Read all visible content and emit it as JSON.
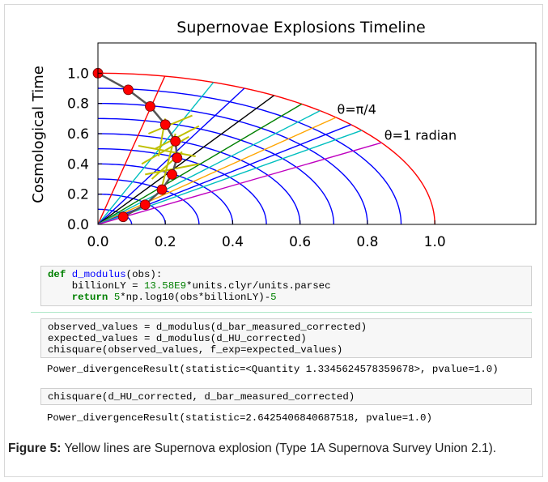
{
  "chart_data": {
    "type": "geometry",
    "title": "Supernovae Explosions Timeline",
    "y_label": "Cosmological Time",
    "xlim": [
      0,
      1.3
    ],
    "ylim": [
      0,
      1.2
    ],
    "xticks": [
      {
        "value": 0,
        "label": "0.0"
      },
      0.2,
      0.4,
      0.6,
      0.8,
      {
        "value": 1,
        "label": "1.0"
      }
    ],
    "yticks": [
      {
        "value": 0,
        "label": "0.0"
      },
      0.2,
      0.4,
      0.6,
      0.8,
      {
        "value": 1,
        "label": "1.0"
      }
    ],
    "arcs": {
      "radii": [
        0.1,
        0.2,
        0.3,
        0.4,
        0.5,
        0.6,
        0.7,
        0.8,
        0.9,
        1
      ],
      "colors": [
        "#0000ff",
        "#0000ff",
        "#0000ff",
        "#0000ff",
        "#0000ff",
        "#0000ff",
        "#0000ff",
        "#0000ff",
        "#0000ff",
        "#ff0000"
      ]
    },
    "radial_lines": {
      "angles": [
        0.2,
        0.35,
        0.45,
        0.55,
        0.65,
        0.72,
        0.785,
        0.85,
        0.9,
        1
      ],
      "colors": [
        "#ff0000",
        "#00bfbf",
        "#0000ff",
        "#000000",
        "#008000",
        "#00bfbf",
        "#ffa500",
        "#0000ff",
        "#00bfbf",
        "#bf00bf"
      ]
    },
    "segments": {
      "color": "#bfbf00",
      "values": [
        [
          0.15,
          0.6,
          0.28,
          0.72
        ],
        [
          0.17,
          0.5,
          0.3,
          0.65
        ],
        [
          0.13,
          0.4,
          0.27,
          0.58
        ],
        [
          0.16,
          0.3,
          0.25,
          0.48
        ],
        [
          0.18,
          0.45,
          0.2,
          0.7
        ],
        [
          0.12,
          0.52,
          0.29,
          0.45
        ],
        [
          0.14,
          0.33,
          0.3,
          0.4
        ],
        [
          0.19,
          0.25,
          0.23,
          0.6
        ]
      ]
    },
    "curve": {
      "color": "#555555",
      "x": [
        0,
        0.09,
        0.155,
        0.2,
        0.23,
        0.235,
        0.22,
        0.19,
        0.14,
        0.075
      ],
      "y": [
        1.0,
        0.89,
        0.78,
        0.66,
        0.55,
        0.44,
        0.33,
        0.23,
        0.13,
        0.05
      ]
    },
    "points": {
      "color": "#ff0000",
      "x": [
        0,
        0.09,
        0.155,
        0.2,
        0.23,
        0.235,
        0.22,
        0.19,
        0.14,
        0.075
      ],
      "y": [
        1.0,
        0.89,
        0.78,
        0.66,
        0.55,
        0.44,
        0.33,
        0.23,
        0.13,
        0.05
      ]
    },
    "annotations": [
      {
        "text": "θ=π/4",
        "x": 0.71,
        "y": 0.73
      },
      {
        "text": "θ=1 radian",
        "x": 0.85,
        "y": 0.56
      }
    ]
  },
  "cells": [
    {
      "lines": [
        "def d_modulus(obs):",
        "    billionLY = 13.58E9*units.clyr/units.parsec",
        "    return 5*np.log10(obs*billionLY)-5"
      ]
    },
    {
      "lines": [
        "observed_values = d_modulus(d_bar_measured_corrected)",
        "expected_values = d_modulus(d_HU_corrected)",
        "chisquare(observed_values, f_exp=expected_values)"
      ],
      "output": "Power_divergenceResult(statistic=<Quantity 1.3345624578359678>, pvalue=1.0)"
    },
    {
      "lines": [
        "chisquare(d_HU_corrected, d_bar_measured_corrected)"
      ],
      "output": "Power_divergenceResult(statistic=2.6425406840687518, pvalue=1.0)"
    }
  ],
  "caption": {
    "label": "Figure 5:",
    "text": " Yellow lines are Supernova explosion (Type 1A Supernova Survey Union 2.1)."
  }
}
